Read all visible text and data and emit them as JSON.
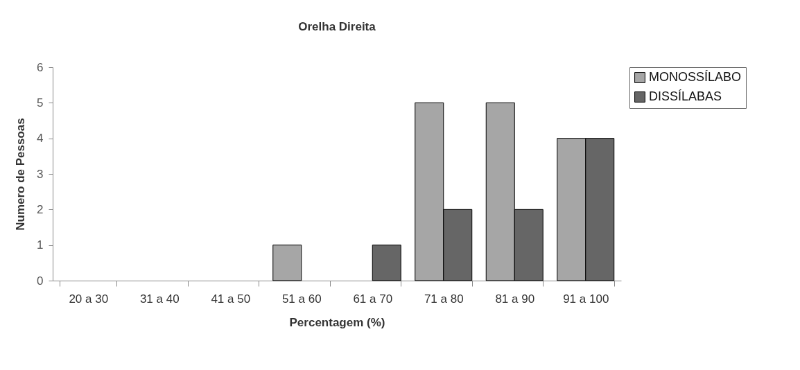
{
  "chart_data": {
    "type": "bar",
    "title": "Orelha Direita",
    "xlabel": "Percentagem (%)",
    "ylabel": "Numero de Pessoas",
    "categories": [
      "20 a 30",
      "31 a 40",
      "41 a 50",
      "51 a 60",
      "61 a 70",
      "71 a 80",
      "81 a 90",
      "91 a 100"
    ],
    "series": [
      {
        "name": "MONOSSÍLABO",
        "color": "#a6a6a6",
        "values": [
          0,
          0,
          0,
          1,
          0,
          5,
          5,
          4
        ]
      },
      {
        "name": "DISSÍLABAS",
        "color": "#666666",
        "values": [
          0,
          0,
          0,
          0,
          1,
          2,
          2,
          4
        ]
      }
    ],
    "ylim": [
      0,
      6
    ],
    "yticks": [
      0,
      1,
      2,
      3,
      4,
      5,
      6
    ],
    "grid": false,
    "legend": "right"
  }
}
